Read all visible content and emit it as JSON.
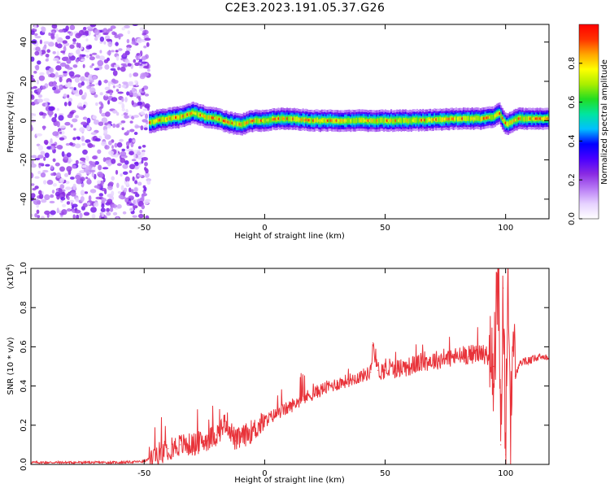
{
  "title": "C2E3.2023.191.05.37.G26",
  "colors": {
    "snr_line": "#e8333a",
    "axis": "#000000",
    "colormap": [
      "#ffffff",
      "#e6d2ff",
      "#b97cf5",
      "#8a2be2",
      "#4a00ff",
      "#0000ff",
      "#00bfff",
      "#00e5a0",
      "#22dd22",
      "#aaee00",
      "#ffff00",
      "#ffa500",
      "#ff3300",
      "#ff0000"
    ]
  },
  "chart_data": [
    {
      "type": "heatmap",
      "title": "",
      "xlabel": "Height of straight line (km)",
      "ylabel": "Frequency (Hz)",
      "xlim": [
        -97,
        118
      ],
      "ylim": [
        -50,
        49
      ],
      "xticks": [
        -50,
        0,
        50,
        100
      ],
      "xtick_labels": [
        "-50",
        "0",
        "50",
        "100"
      ],
      "yticks": [
        -40,
        -20,
        0,
        20,
        40
      ],
      "ytick_labels": [
        "-40",
        "-20",
        "0",
        "20",
        "40"
      ],
      "grid": false,
      "noise_region_x": [
        -97,
        -48
      ],
      "ridge": {
        "x": [
          -48,
          -45,
          -40,
          -35,
          -30,
          -25,
          -20,
          -15,
          -10,
          -5,
          0,
          5,
          10,
          20,
          40,
          60,
          80,
          90,
          95,
          97,
          100,
          105,
          110,
          118
        ],
        "freq": [
          -1,
          0,
          1,
          2,
          4,
          2,
          1,
          -1,
          -2,
          0,
          0,
          1,
          1,
          0,
          0,
          0,
          1,
          1,
          2,
          4,
          -2,
          1,
          1,
          1
        ],
        "peak_amplitude": 0.95
      },
      "colorbar": {
        "label": "Normalized spectral amplitude",
        "range": [
          0,
          1
        ],
        "ticks": [
          0.0,
          0.2,
          0.4,
          0.6,
          0.8
        ],
        "tick_labels": [
          "0.0",
          "0.2",
          "0.4",
          "0.6",
          "0.8"
        ]
      }
    },
    {
      "type": "line",
      "title": "",
      "xlabel": "Height of straight line (km)",
      "ylabel": "SNR (10 * v/v)",
      "scale_label": "(x10",
      "scale_exponent": "4",
      "scale_close": ")",
      "xlim": [
        -97,
        118
      ],
      "ylim": [
        0,
        1.0
      ],
      "xticks": [
        -50,
        0,
        50,
        100
      ],
      "xtick_labels": [
        "-50",
        "0",
        "50",
        "100"
      ],
      "yticks": [
        0.0,
        0.2,
        0.4,
        0.6,
        0.8,
        1.0
      ],
      "ytick_labels": [
        "0.0",
        "0.2",
        "0.4",
        "0.6",
        "0.8",
        "1.0"
      ],
      "grid": false,
      "series": [
        {
          "x": [
            -97,
            -90,
            -80,
            -70,
            -60,
            -50,
            -45,
            -40,
            -35,
            -30,
            -25,
            -20,
            -16,
            -12,
            -8,
            -4,
            0,
            5,
            10,
            15,
            20,
            25,
            30,
            35,
            40,
            44,
            45,
            47,
            50,
            55,
            60,
            65,
            70,
            75,
            80,
            85,
            90,
            93,
            95,
            97,
            98,
            99,
            100,
            101,
            102,
            103,
            104,
            106,
            110,
            115,
            118
          ],
          "y": [
            0.01,
            0.01,
            0.01,
            0.01,
            0.01,
            0.015,
            0.05,
            0.08,
            0.1,
            0.1,
            0.12,
            0.15,
            0.22,
            0.12,
            0.15,
            0.18,
            0.22,
            0.26,
            0.29,
            0.33,
            0.36,
            0.39,
            0.41,
            0.43,
            0.45,
            0.47,
            0.62,
            0.48,
            0.48,
            0.49,
            0.5,
            0.52,
            0.53,
            0.54,
            0.55,
            0.56,
            0.57,
            0.55,
            0.5,
            0.95,
            0.1,
            0.9,
            0.05,
            0.98,
            0.2,
            0.6,
            0.45,
            0.52,
            0.53,
            0.55,
            0.55
          ]
        }
      ]
    }
  ]
}
